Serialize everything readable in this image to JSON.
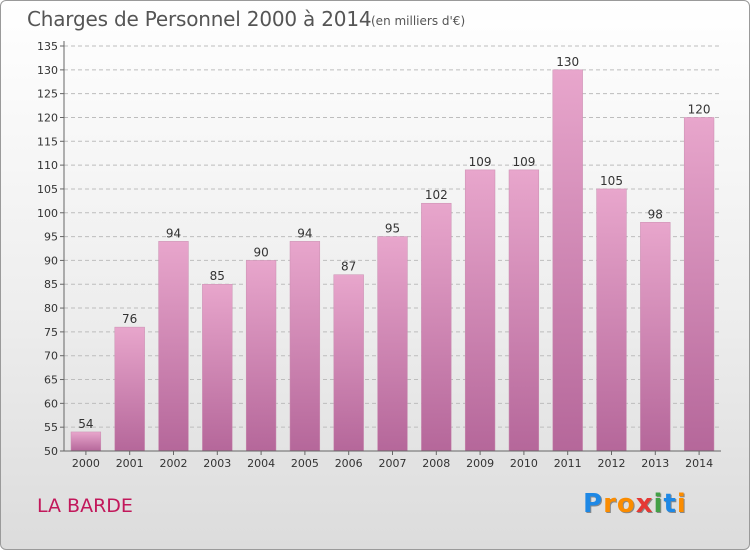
{
  "header": {
    "title": "Charges de Personnel 2000 à 2014",
    "subtitle": "(en milliers d'€)"
  },
  "footer": {
    "commune": "LA BARDE",
    "logo_letters": [
      "P",
      "r",
      "o",
      "x",
      "i",
      "t",
      "i"
    ],
    "logo_colors": [
      "#1e88e5",
      "#fb8c00",
      "#fb8c00",
      "#e53935",
      "#43a047",
      "#1e88e5",
      "#fb8c00"
    ]
  },
  "colors": {
    "bar_top": "#e8a6cc",
    "bar_bottom": "#b5679a",
    "grid": "#bdbdbd"
  },
  "chart_data": {
    "type": "bar",
    "title": "Charges de Personnel 2000 à 2014",
    "xlabel": "",
    "ylabel": "",
    "categories": [
      "2000",
      "2001",
      "2002",
      "2003",
      "2004",
      "2005",
      "2006",
      "2007",
      "2008",
      "2009",
      "2010",
      "2011",
      "2012",
      "2013",
      "2014"
    ],
    "values": [
      54,
      76,
      94,
      85,
      90,
      94,
      87,
      95,
      102,
      109,
      109,
      130,
      105,
      98,
      120
    ],
    "ylim": [
      50,
      135
    ],
    "yticks": [
      50,
      55,
      60,
      65,
      70,
      75,
      80,
      85,
      90,
      95,
      100,
      105,
      110,
      115,
      120,
      125,
      130,
      135
    ],
    "grid": true
  }
}
